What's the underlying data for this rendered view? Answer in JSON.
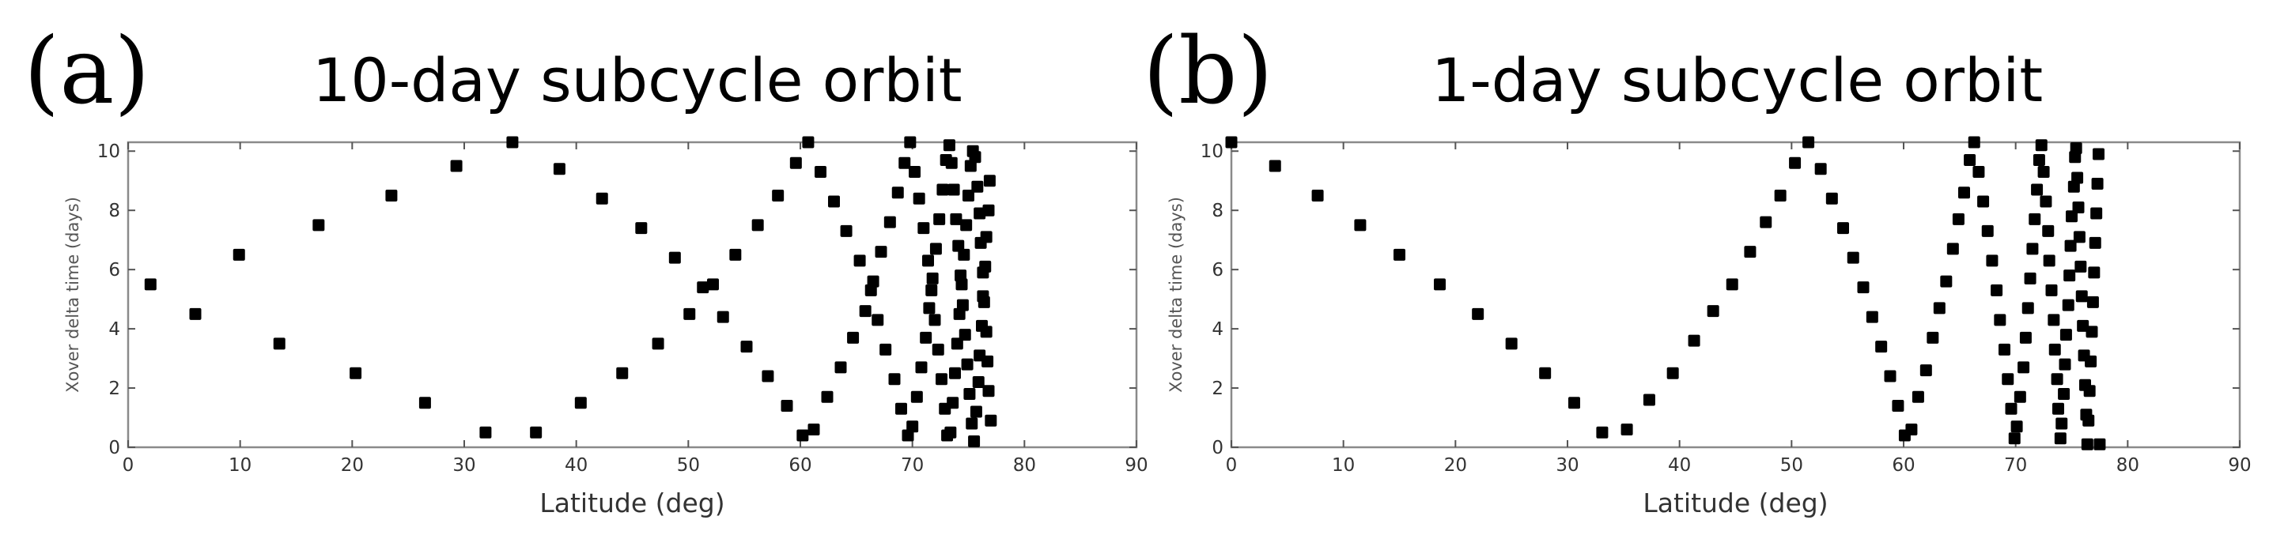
{
  "chart_data": [
    {
      "type": "scatter",
      "panel_label": "(a)",
      "title": "10-day subcycle orbit",
      "xlabel": "Latitude (deg)",
      "ylabel": "Xover delta time (days)",
      "xlim": [
        0,
        90
      ],
      "ylim": [
        0,
        10.3
      ],
      "xticks": [
        0,
        10,
        20,
        30,
        40,
        50,
        60,
        70,
        80,
        90
      ],
      "yticks": [
        0,
        2,
        4,
        6,
        8,
        10
      ],
      "grid": false,
      "marker": "square",
      "color": "#000000",
      "points": [
        [
          2.0,
          5.5
        ],
        [
          6.0,
          4.5
        ],
        [
          9.9,
          6.5
        ],
        [
          13.5,
          3.5
        ],
        [
          17.0,
          7.5
        ],
        [
          20.3,
          2.5
        ],
        [
          23.5,
          8.5
        ],
        [
          26.5,
          1.5
        ],
        [
          29.3,
          9.5
        ],
        [
          31.9,
          0.5
        ],
        [
          34.3,
          10.3
        ],
        [
          36.4,
          0.5
        ],
        [
          38.5,
          9.4
        ],
        [
          40.4,
          1.5
        ],
        [
          42.3,
          8.4
        ],
        [
          44.1,
          2.5
        ],
        [
          45.8,
          7.4
        ],
        [
          47.3,
          3.5
        ],
        [
          48.8,
          6.4
        ],
        [
          50.1,
          4.5
        ],
        [
          51.3,
          5.4
        ],
        [
          52.2,
          5.5
        ],
        [
          53.1,
          4.4
        ],
        [
          54.2,
          6.5
        ],
        [
          55.2,
          3.4
        ],
        [
          56.2,
          7.5
        ],
        [
          57.1,
          2.4
        ],
        [
          58.0,
          8.5
        ],
        [
          58.8,
          1.4
        ],
        [
          59.6,
          9.6
        ],
        [
          60.2,
          0.4
        ],
        [
          60.7,
          10.3
        ],
        [
          61.2,
          0.6
        ],
        [
          61.8,
          9.3
        ],
        [
          62.4,
          1.7
        ],
        [
          63.0,
          8.3
        ],
        [
          63.6,
          2.7
        ],
        [
          64.1,
          7.3
        ],
        [
          64.7,
          3.7
        ],
        [
          65.3,
          6.3
        ],
        [
          65.8,
          4.6
        ],
        [
          66.3,
          5.3
        ],
        [
          66.5,
          5.6
        ],
        [
          66.9,
          4.3
        ],
        [
          67.2,
          6.6
        ],
        [
          67.6,
          3.3
        ],
        [
          68.0,
          7.6
        ],
        [
          68.4,
          2.3
        ],
        [
          68.7,
          8.6
        ],
        [
          69.0,
          1.3
        ],
        [
          69.3,
          9.6
        ],
        [
          69.6,
          0.4
        ],
        [
          69.8,
          10.3
        ],
        [
          70.0,
          0.7
        ],
        [
          70.2,
          9.3
        ],
        [
          70.4,
          1.7
        ],
        [
          70.6,
          8.4
        ],
        [
          70.8,
          2.7
        ],
        [
          71.0,
          7.4
        ],
        [
          71.2,
          3.7
        ],
        [
          71.4,
          6.3
        ],
        [
          71.5,
          4.7
        ],
        [
          71.7,
          5.3
        ],
        [
          71.8,
          5.7
        ],
        [
          72.0,
          4.3
        ],
        [
          72.1,
          6.7
        ],
        [
          72.3,
          3.3
        ],
        [
          72.4,
          7.7
        ],
        [
          72.6,
          2.3
        ],
        [
          72.7,
          8.7
        ],
        [
          72.9,
          1.3
        ],
        [
          73.0,
          9.7
        ],
        [
          73.1,
          0.4
        ],
        [
          73.3,
          10.2
        ],
        [
          73.4,
          0.5
        ],
        [
          73.5,
          9.6
        ],
        [
          73.6,
          1.5
        ],
        [
          73.7,
          8.7
        ],
        [
          73.8,
          2.5
        ],
        [
          73.9,
          7.7
        ],
        [
          74.0,
          3.5
        ],
        [
          74.1,
          6.8
        ],
        [
          74.2,
          4.5
        ],
        [
          74.3,
          5.8
        ],
        [
          74.4,
          5.5
        ],
        [
          74.5,
          4.8
        ],
        [
          74.6,
          6.5
        ],
        [
          74.7,
          3.8
        ],
        [
          74.8,
          7.5
        ],
        [
          74.9,
          2.8
        ],
        [
          75.0,
          8.5
        ],
        [
          75.1,
          1.8
        ],
        [
          75.2,
          9.5
        ],
        [
          75.3,
          0.8
        ],
        [
          75.4,
          10.0
        ],
        [
          75.5,
          0.2
        ],
        [
          75.6,
          9.8
        ],
        [
          75.7,
          1.2
        ],
        [
          75.8,
          8.8
        ],
        [
          75.9,
          2.2
        ],
        [
          76.0,
          7.9
        ],
        [
          76.0,
          3.1
        ],
        [
          76.1,
          6.9
        ],
        [
          76.2,
          4.1
        ],
        [
          76.3,
          5.9
        ],
        [
          76.3,
          5.1
        ],
        [
          76.4,
          4.9
        ],
        [
          76.5,
          6.1
        ],
        [
          76.6,
          3.9
        ],
        [
          76.6,
          7.1
        ],
        [
          76.7,
          2.9
        ],
        [
          76.8,
          8.0
        ],
        [
          76.8,
          1.9
        ],
        [
          76.9,
          9.0
        ],
        [
          77.0,
          0.9
        ]
      ]
    },
    {
      "type": "scatter",
      "panel_label": "(b)",
      "title": "1-day subcycle orbit",
      "xlabel": "Latitude (deg)",
      "ylabel": "Xover delta time (days)",
      "xlim": [
        0,
        90
      ],
      "ylim": [
        0,
        10.3
      ],
      "xticks": [
        0,
        10,
        20,
        30,
        40,
        50,
        60,
        70,
        80,
        90
      ],
      "yticks": [
        0,
        2,
        4,
        6,
        8,
        10
      ],
      "grid": false,
      "marker": "square",
      "color": "#000000",
      "points": [
        [
          0.0,
          10.3
        ],
        [
          3.9,
          9.5
        ],
        [
          7.7,
          8.5
        ],
        [
          11.5,
          7.5
        ],
        [
          15.0,
          6.5
        ],
        [
          18.6,
          5.5
        ],
        [
          22.0,
          4.5
        ],
        [
          25.0,
          3.5
        ],
        [
          28.0,
          2.5
        ],
        [
          30.6,
          1.5
        ],
        [
          33.1,
          0.5
        ],
        [
          35.3,
          0.6
        ],
        [
          37.3,
          1.6
        ],
        [
          39.4,
          2.5
        ],
        [
          41.3,
          3.6
        ],
        [
          43.0,
          4.6
        ],
        [
          44.7,
          5.5
        ],
        [
          46.3,
          6.6
        ],
        [
          47.7,
          7.6
        ],
        [
          49.0,
          8.5
        ],
        [
          50.3,
          9.6
        ],
        [
          51.5,
          10.3
        ],
        [
          52.6,
          9.4
        ],
        [
          53.6,
          8.4
        ],
        [
          54.6,
          7.4
        ],
        [
          55.5,
          6.4
        ],
        [
          56.4,
          5.4
        ],
        [
          57.2,
          4.4
        ],
        [
          58.0,
          3.4
        ],
        [
          58.8,
          2.4
        ],
        [
          59.5,
          1.4
        ],
        [
          60.1,
          0.4
        ],
        [
          60.7,
          0.6
        ],
        [
          61.3,
          1.7
        ],
        [
          62.0,
          2.6
        ],
        [
          62.6,
          3.7
        ],
        [
          63.2,
          4.7
        ],
        [
          63.8,
          5.6
        ],
        [
          64.4,
          6.7
        ],
        [
          64.9,
          7.7
        ],
        [
          65.4,
          8.6
        ],
        [
          65.9,
          9.7
        ],
        [
          66.3,
          10.3
        ],
        [
          66.7,
          9.3
        ],
        [
          67.1,
          8.3
        ],
        [
          67.5,
          7.3
        ],
        [
          67.9,
          6.3
        ],
        [
          68.3,
          5.3
        ],
        [
          68.6,
          4.3
        ],
        [
          69.0,
          3.3
        ],
        [
          69.3,
          2.3
        ],
        [
          69.6,
          1.3
        ],
        [
          69.9,
          0.3
        ],
        [
          70.1,
          0.7
        ],
        [
          70.4,
          1.7
        ],
        [
          70.7,
          2.7
        ],
        [
          70.9,
          3.7
        ],
        [
          71.1,
          4.7
        ],
        [
          71.3,
          5.7
        ],
        [
          71.5,
          6.7
        ],
        [
          71.7,
          7.7
        ],
        [
          71.9,
          8.7
        ],
        [
          72.1,
          9.7
        ],
        [
          72.3,
          10.2
        ],
        [
          72.5,
          9.3
        ],
        [
          72.7,
          8.3
        ],
        [
          72.9,
          7.3
        ],
        [
          73.0,
          6.3
        ],
        [
          73.2,
          5.3
        ],
        [
          73.4,
          4.3
        ],
        [
          73.5,
          3.3
        ],
        [
          73.7,
          2.3
        ],
        [
          73.8,
          1.3
        ],
        [
          74.0,
          0.3
        ],
        [
          74.1,
          0.8
        ],
        [
          74.3,
          1.8
        ],
        [
          74.4,
          2.8
        ],
        [
          74.5,
          3.8
        ],
        [
          74.7,
          4.8
        ],
        [
          74.8,
          5.8
        ],
        [
          74.9,
          6.8
        ],
        [
          75.0,
          7.8
        ],
        [
          75.2,
          8.8
        ],
        [
          75.3,
          9.8
        ],
        [
          75.4,
          10.1
        ],
        [
          75.5,
          9.1
        ],
        [
          75.6,
          8.1
        ],
        [
          75.7,
          7.1
        ],
        [
          75.8,
          6.1
        ],
        [
          75.9,
          5.1
        ],
        [
          76.0,
          4.1
        ],
        [
          76.1,
          3.1
        ],
        [
          76.2,
          2.1
        ],
        [
          76.3,
          1.1
        ],
        [
          76.4,
          0.1
        ],
        [
          76.5,
          0.9
        ],
        [
          76.6,
          1.9
        ],
        [
          76.7,
          2.9
        ],
        [
          76.8,
          3.9
        ],
        [
          76.9,
          4.9
        ],
        [
          77.0,
          5.9
        ],
        [
          77.1,
          6.9
        ],
        [
          77.2,
          7.9
        ],
        [
          77.3,
          8.9
        ],
        [
          77.4,
          9.9
        ],
        [
          77.5,
          0.1
        ]
      ]
    }
  ]
}
